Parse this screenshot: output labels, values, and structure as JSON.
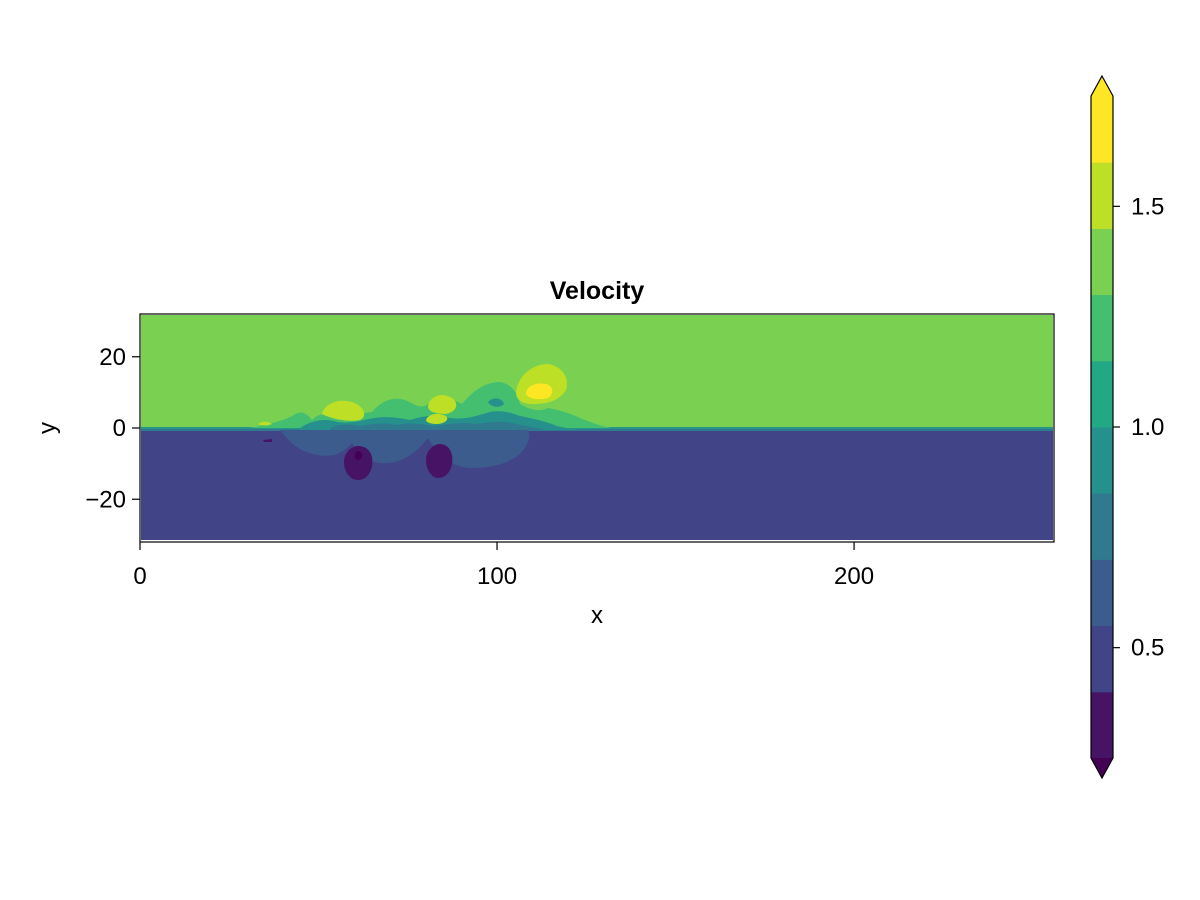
{
  "chart_data": {
    "type": "heatmap",
    "subtype": "filled-contour",
    "title": "Velocity",
    "xlabel": "x",
    "ylabel": "y",
    "xlim": [
      0,
      256
    ],
    "ylim": [
      -32,
      32
    ],
    "xticks": [
      0,
      100,
      200
    ],
    "xtick_labels": [
      "0",
      "100",
      "200"
    ],
    "yticks": [
      -20,
      0,
      20
    ],
    "ytick_labels": [
      "−20",
      "0",
      "20"
    ],
    "colorbar": {
      "range": [
        0.25,
        1.75
      ],
      "levels": [
        0.25,
        0.4,
        0.55,
        0.7,
        0.85,
        1.0,
        1.15,
        1.3,
        1.45,
        1.6,
        1.75
      ],
      "colors": [
        "#471365",
        "#414487",
        "#3b5c8c",
        "#2f7a8e",
        "#26908c",
        "#22a884",
        "#44bf70",
        "#7ad151",
        "#bddf26",
        "#fde725"
      ],
      "extend": "both",
      "ticks": [
        0.5,
        1.0,
        1.5
      ],
      "tick_labels": [
        "0.5",
        "1.0",
        "1.5"
      ],
      "under_color": "#440154",
      "over_color": "#fde725"
    },
    "field": {
      "upper_region_value": 1.5,
      "lower_region_value": 0.5,
      "interface_y": 0,
      "features": [
        {
          "kind": "vortex",
          "x": 62,
          "y": -10,
          "value": 0.3
        },
        {
          "kind": "vortex",
          "x": 84,
          "y": -10,
          "value": 0.3
        },
        {
          "kind": "vortex",
          "x": 61,
          "y": -7.5,
          "value": 0.2
        },
        {
          "kind": "jet",
          "x": 113,
          "y": 10,
          "value": 1.7
        },
        {
          "kind": "jet",
          "x": 85,
          "y": 7,
          "value": 1.65
        },
        {
          "kind": "jet",
          "x": 57,
          "y": 5,
          "value": 1.6
        },
        {
          "kind": "jet",
          "x": 84,
          "y": 2.5,
          "value": 1.6
        }
      ]
    }
  }
}
